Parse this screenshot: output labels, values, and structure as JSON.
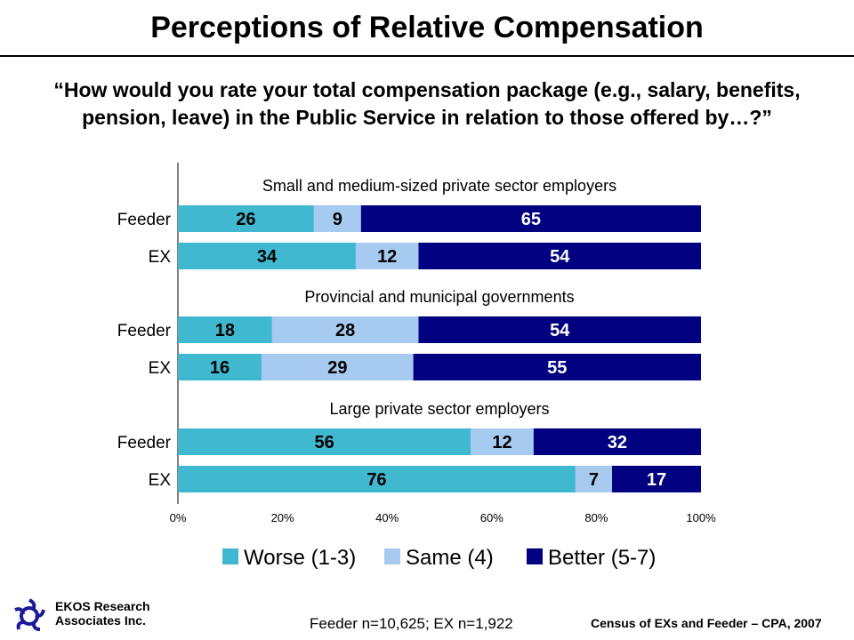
{
  "title": "Perceptions of Relative Compensation",
  "subtitle": "“How would you rate your total compensation package (e.g., salary, benefits, pension, leave) in the Public Service in relation to those offered by…?”",
  "chart_data": {
    "type": "bar",
    "orientation": "horizontal-stacked-100",
    "groups": [
      {
        "label": "Small and medium-sized private sector employers",
        "rows": [
          {
            "label": "Feeder",
            "values": [
              26,
              9,
              65
            ]
          },
          {
            "label": "EX",
            "values": [
              34,
              12,
              54
            ]
          }
        ]
      },
      {
        "label": "Provincial and municipal governments",
        "rows": [
          {
            "label": "Feeder",
            "values": [
              18,
              28,
              54
            ]
          },
          {
            "label": "EX",
            "values": [
              16,
              29,
              55
            ]
          }
        ]
      },
      {
        "label": "Large private sector employers",
        "rows": [
          {
            "label": "Feeder",
            "values": [
              56,
              12,
              32
            ]
          },
          {
            "label": "EX",
            "values": [
              76,
              7,
              17
            ]
          }
        ]
      }
    ],
    "series": [
      {
        "name": "Worse (1-3)",
        "color": "#40B8D0",
        "label_color": "#000000"
      },
      {
        "name": "Same (4)",
        "color": "#A6CAF0",
        "label_color": "#000000"
      },
      {
        "name": "Better (5-7)",
        "color": "#000080",
        "label_color": "#FFFFFF"
      }
    ],
    "xticks": [
      "0%",
      "20%",
      "40%",
      "60%",
      "80%",
      "100%"
    ],
    "xlim": [
      0,
      100
    ],
    "legend": "bottom"
  },
  "footer": {
    "company_line1": "EKOS Research",
    "company_line2": "Associates Inc.",
    "sample": "Feeder n=10,625; EX n=1,922",
    "source": "Census of EXs and Feeder – CPA, 2007"
  }
}
